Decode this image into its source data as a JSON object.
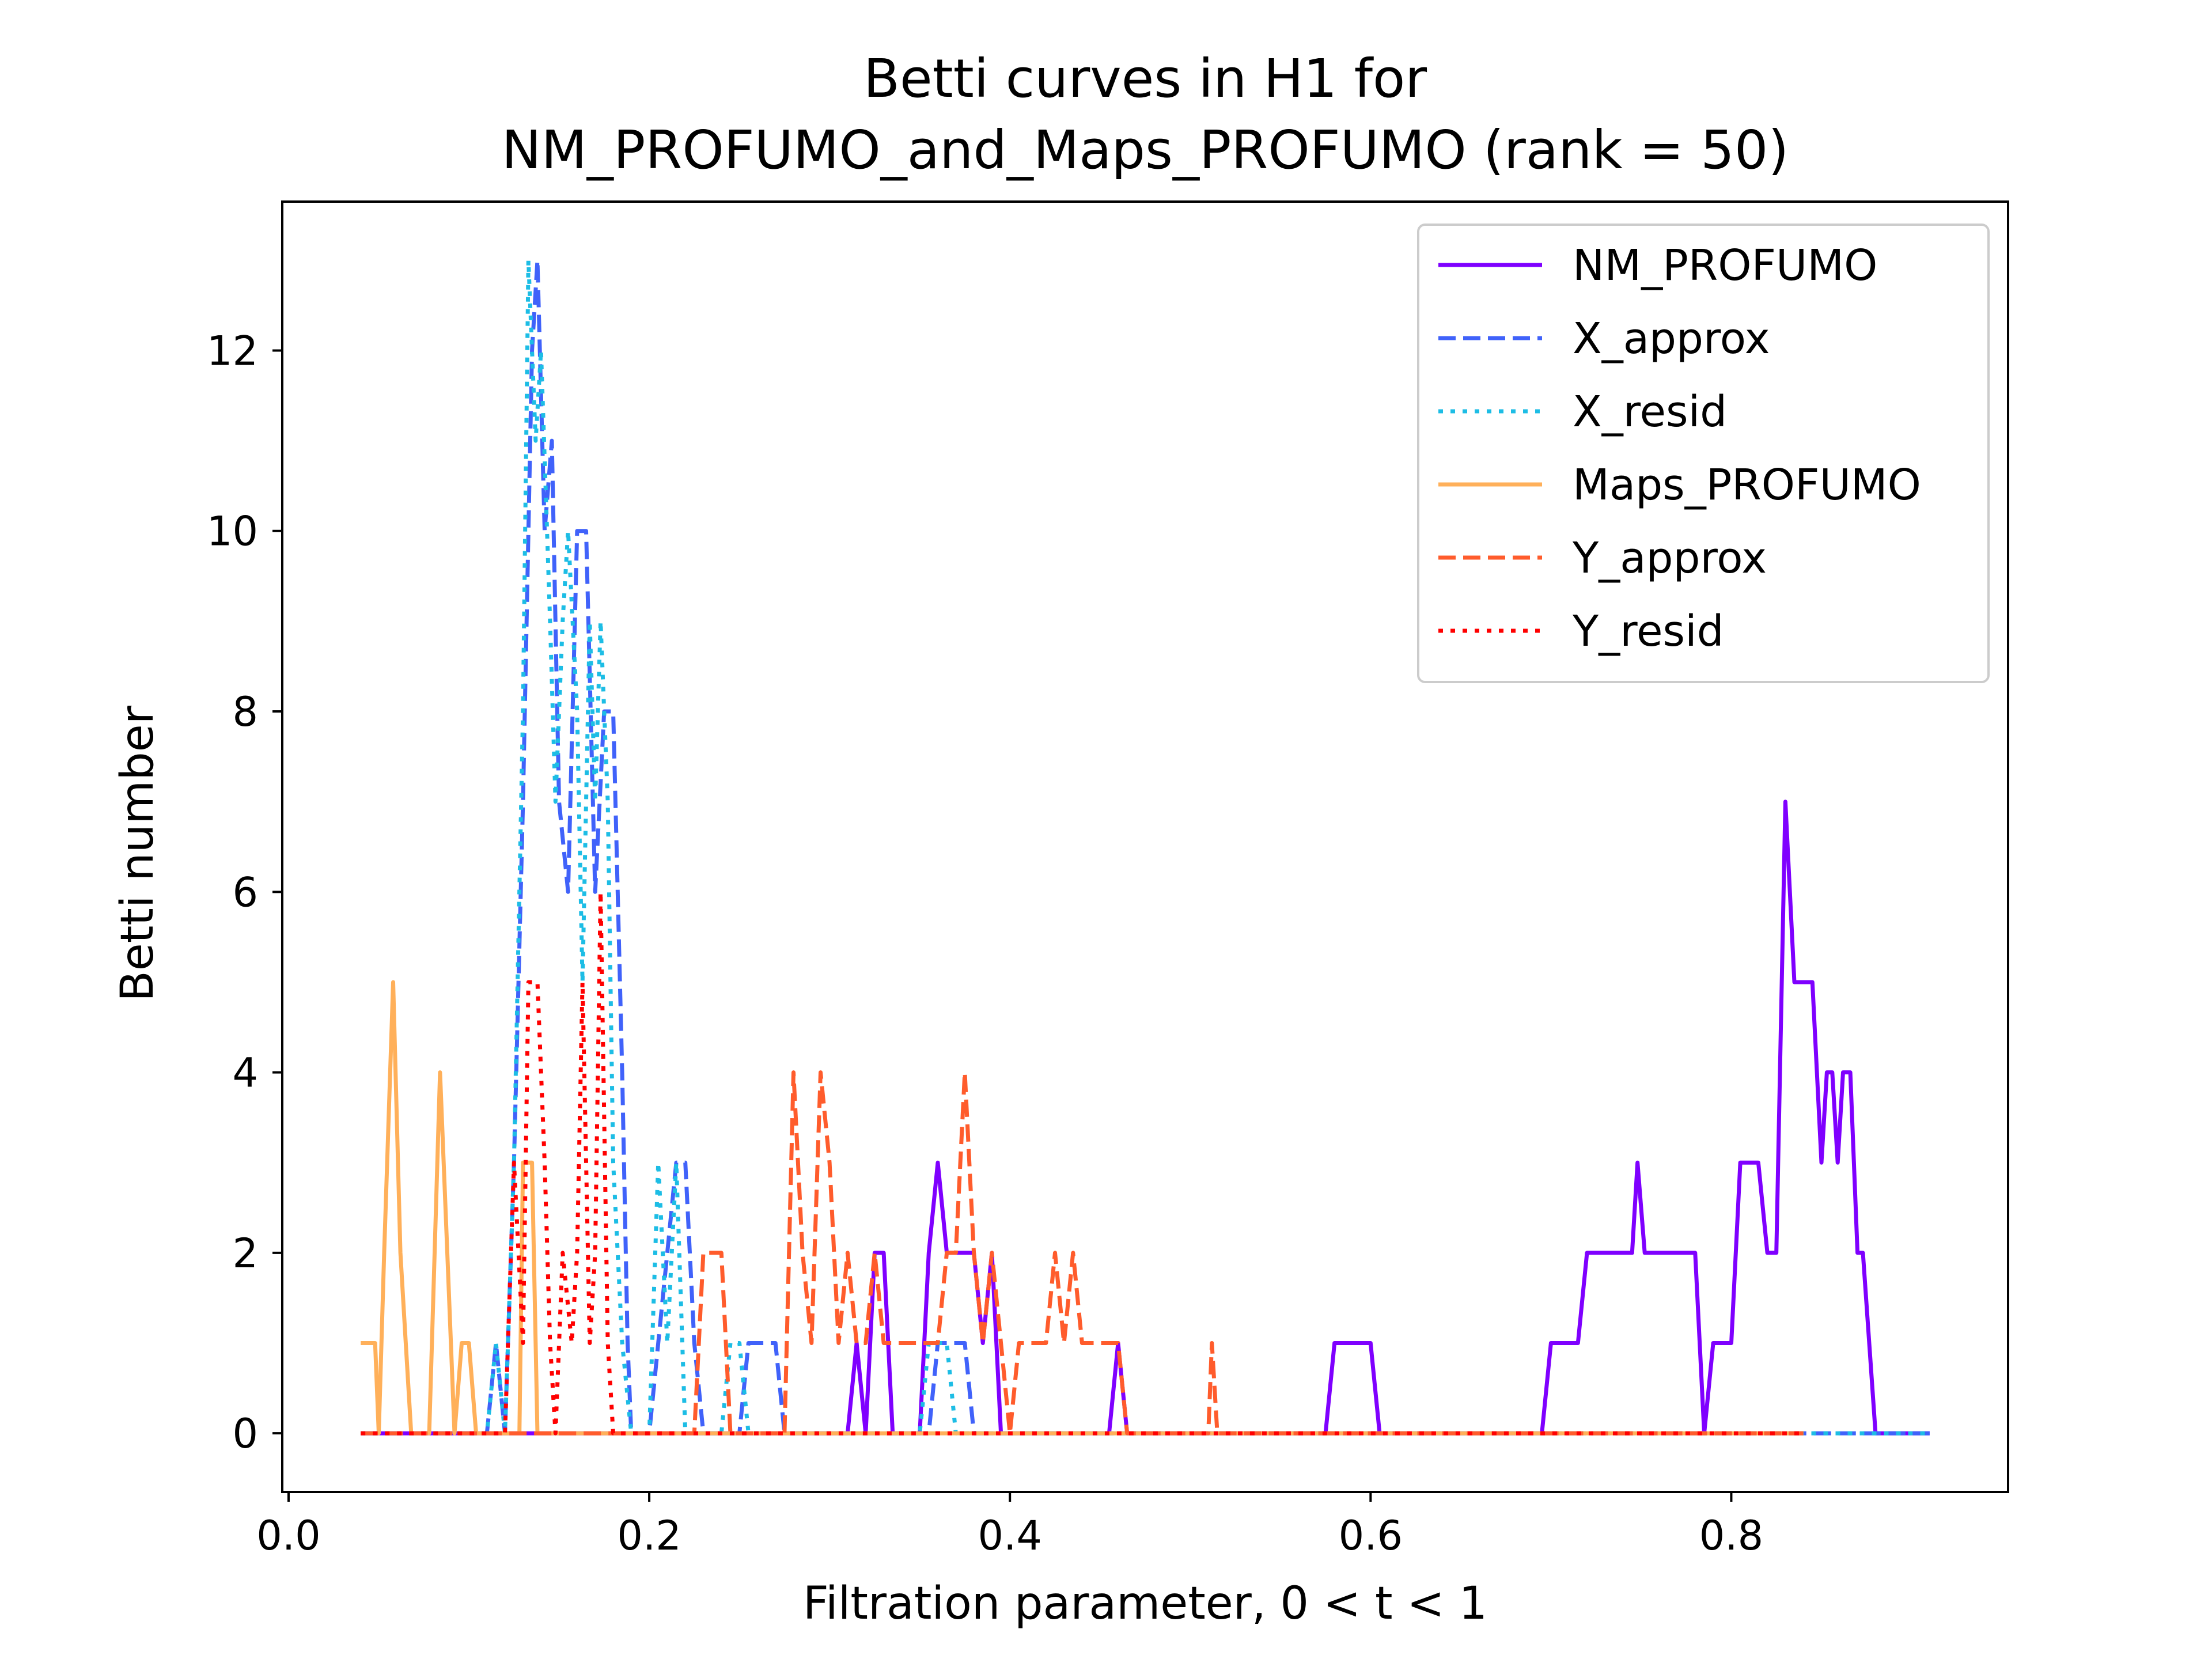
{
  "chart_data": {
    "type": "line",
    "title": "Betti curves in H1 for",
    "subtitle": "NM_PROFUMO_and_Maps_PROFUMO (rank = 50)",
    "xlabel": "Filtration parameter, 0 < t < 1",
    "ylabel": "Betti number",
    "xlim": [
      -0.0035,
      0.9535
    ],
    "ylim": [
      -0.65,
      13.65
    ],
    "xticks": [
      0.0,
      0.2,
      0.4,
      0.6,
      0.8
    ],
    "xtick_labels": [
      "0.0",
      "0.2",
      "0.4",
      "0.6",
      "0.8"
    ],
    "yticks": [
      0,
      2,
      4,
      6,
      8,
      10,
      12
    ],
    "ytick_labels": [
      "0",
      "2",
      "4",
      "6",
      "8",
      "10",
      "12"
    ],
    "grid": false,
    "legend_position": "top-right",
    "series": [
      {
        "name": "NM_PROFUMO",
        "color": "#7f00ff",
        "style": "solid",
        "points": [
          [
            0.04,
            0
          ],
          [
            0.31,
            0
          ],
          [
            0.315,
            1
          ],
          [
            0.32,
            0
          ],
          [
            0.325,
            2
          ],
          [
            0.33,
            2
          ],
          [
            0.335,
            0
          ],
          [
            0.35,
            0
          ],
          [
            0.355,
            2
          ],
          [
            0.36,
            3
          ],
          [
            0.365,
            2
          ],
          [
            0.38,
            2
          ],
          [
            0.385,
            1
          ],
          [
            0.39,
            2
          ],
          [
            0.395,
            0
          ],
          [
            0.455,
            0
          ],
          [
            0.46,
            1
          ],
          [
            0.465,
            0
          ],
          [
            0.575,
            0
          ],
          [
            0.58,
            1
          ],
          [
            0.6,
            1
          ],
          [
            0.605,
            0
          ],
          [
            0.695,
            0
          ],
          [
            0.7,
            1
          ],
          [
            0.715,
            1
          ],
          [
            0.72,
            2
          ],
          [
            0.745,
            2
          ],
          [
            0.748,
            3
          ],
          [
            0.752,
            2
          ],
          [
            0.78,
            2
          ],
          [
            0.785,
            0
          ],
          [
            0.79,
            1
          ],
          [
            0.8,
            1
          ],
          [
            0.805,
            3
          ],
          [
            0.815,
            3
          ],
          [
            0.82,
            2
          ],
          [
            0.825,
            2
          ],
          [
            0.83,
            7
          ],
          [
            0.835,
            5
          ],
          [
            0.845,
            5
          ],
          [
            0.85,
            3
          ],
          [
            0.853,
            4
          ],
          [
            0.856,
            4
          ],
          [
            0.859,
            3
          ],
          [
            0.862,
            4
          ],
          [
            0.866,
            4
          ],
          [
            0.87,
            2
          ],
          [
            0.873,
            2
          ],
          [
            0.88,
            0
          ],
          [
            0.91,
            0
          ]
        ]
      },
      {
        "name": "X_approx",
        "color": "#4062fa",
        "style": "dashed",
        "points": [
          [
            0.04,
            0
          ],
          [
            0.11,
            0
          ],
          [
            0.115,
            1
          ],
          [
            0.12,
            0
          ],
          [
            0.125,
            3
          ],
          [
            0.13,
            7
          ],
          [
            0.135,
            12
          ],
          [
            0.138,
            13
          ],
          [
            0.142,
            10
          ],
          [
            0.146,
            11
          ],
          [
            0.15,
            7
          ],
          [
            0.155,
            6
          ],
          [
            0.16,
            10
          ],
          [
            0.165,
            10
          ],
          [
            0.17,
            6
          ],
          [
            0.175,
            8
          ],
          [
            0.18,
            8
          ],
          [
            0.185,
            4
          ],
          [
            0.188,
            1
          ],
          [
            0.19,
            0
          ],
          [
            0.2,
            0
          ],
          [
            0.205,
            1
          ],
          [
            0.21,
            2
          ],
          [
            0.215,
            3
          ],
          [
            0.22,
            3
          ],
          [
            0.225,
            1
          ],
          [
            0.23,
            0
          ],
          [
            0.25,
            0
          ],
          [
            0.255,
            1
          ],
          [
            0.27,
            1
          ],
          [
            0.275,
            0
          ],
          [
            0.355,
            0
          ],
          [
            0.36,
            1
          ],
          [
            0.375,
            1
          ],
          [
            0.38,
            0
          ],
          [
            0.91,
            0
          ]
        ]
      },
      {
        "name": "X_resid",
        "color": "#1dbde5",
        "style": "dotted",
        "points": [
          [
            0.04,
            0
          ],
          [
            0.11,
            0
          ],
          [
            0.115,
            1
          ],
          [
            0.12,
            0
          ],
          [
            0.125,
            3
          ],
          [
            0.13,
            8
          ],
          [
            0.133,
            13
          ],
          [
            0.137,
            11
          ],
          [
            0.14,
            12
          ],
          [
            0.145,
            9
          ],
          [
            0.148,
            7
          ],
          [
            0.152,
            9
          ],
          [
            0.155,
            10
          ],
          [
            0.16,
            8
          ],
          [
            0.163,
            5
          ],
          [
            0.167,
            9
          ],
          [
            0.17,
            7
          ],
          [
            0.173,
            9
          ],
          [
            0.177,
            7
          ],
          [
            0.18,
            3
          ],
          [
            0.185,
            1
          ],
          [
            0.19,
            0
          ],
          [
            0.2,
            0
          ],
          [
            0.205,
            3
          ],
          [
            0.21,
            1
          ],
          [
            0.215,
            3
          ],
          [
            0.22,
            0
          ],
          [
            0.24,
            0
          ],
          [
            0.245,
            1
          ],
          [
            0.25,
            1
          ],
          [
            0.255,
            0
          ],
          [
            0.35,
            0
          ],
          [
            0.355,
            1
          ],
          [
            0.365,
            1
          ],
          [
            0.37,
            0
          ],
          [
            0.91,
            0
          ]
        ]
      },
      {
        "name": "Maps_PROFUMO",
        "color": "#ffb05a",
        "style": "solid",
        "points": [
          [
            0.04,
            1
          ],
          [
            0.048,
            1
          ],
          [
            0.05,
            0
          ],
          [
            0.053,
            2
          ],
          [
            0.058,
            5
          ],
          [
            0.062,
            2
          ],
          [
            0.065,
            1
          ],
          [
            0.068,
            0
          ],
          [
            0.078,
            0
          ],
          [
            0.084,
            4
          ],
          [
            0.088,
            2
          ],
          [
            0.092,
            0
          ],
          [
            0.096,
            1
          ],
          [
            0.1,
            1
          ],
          [
            0.104,
            0
          ],
          [
            0.128,
            0
          ],
          [
            0.13,
            3
          ],
          [
            0.135,
            3
          ],
          [
            0.138,
            0
          ],
          [
            0.84,
            0
          ]
        ]
      },
      {
        "name": "Y_approx",
        "color": "#ff5c2c",
        "style": "dashed",
        "points": [
          [
            0.04,
            0
          ],
          [
            0.225,
            0
          ],
          [
            0.23,
            2
          ],
          [
            0.24,
            2
          ],
          [
            0.245,
            0
          ],
          [
            0.275,
            0
          ],
          [
            0.28,
            4
          ],
          [
            0.285,
            2
          ],
          [
            0.29,
            1
          ],
          [
            0.295,
            4
          ],
          [
            0.3,
            3
          ],
          [
            0.305,
            1
          ],
          [
            0.31,
            2
          ],
          [
            0.315,
            1
          ],
          [
            0.32,
            1
          ],
          [
            0.325,
            2
          ],
          [
            0.33,
            1
          ],
          [
            0.36,
            1
          ],
          [
            0.365,
            2
          ],
          [
            0.37,
            2
          ],
          [
            0.375,
            4
          ],
          [
            0.38,
            2
          ],
          [
            0.385,
            1
          ],
          [
            0.39,
            2
          ],
          [
            0.395,
            1
          ],
          [
            0.4,
            0
          ],
          [
            0.405,
            1
          ],
          [
            0.42,
            1
          ],
          [
            0.425,
            2
          ],
          [
            0.43,
            1
          ],
          [
            0.435,
            2
          ],
          [
            0.44,
            1
          ],
          [
            0.46,
            1
          ],
          [
            0.465,
            0
          ],
          [
            0.51,
            0
          ],
          [
            0.512,
            1
          ],
          [
            0.515,
            0
          ],
          [
            0.84,
            0
          ]
        ]
      },
      {
        "name": "Y_resid",
        "color": "#ff0000",
        "style": "dotted",
        "points": [
          [
            0.04,
            0
          ],
          [
            0.12,
            0
          ],
          [
            0.125,
            3
          ],
          [
            0.13,
            1
          ],
          [
            0.133,
            5
          ],
          [
            0.138,
            5
          ],
          [
            0.142,
            3
          ],
          [
            0.145,
            1
          ],
          [
            0.148,
            0
          ],
          [
            0.152,
            2
          ],
          [
            0.157,
            1
          ],
          [
            0.16,
            2
          ],
          [
            0.163,
            5
          ],
          [
            0.167,
            1
          ],
          [
            0.17,
            2
          ],
          [
            0.173,
            6
          ],
          [
            0.177,
            1
          ],
          [
            0.18,
            0
          ],
          [
            0.84,
            0
          ]
        ]
      }
    ]
  }
}
